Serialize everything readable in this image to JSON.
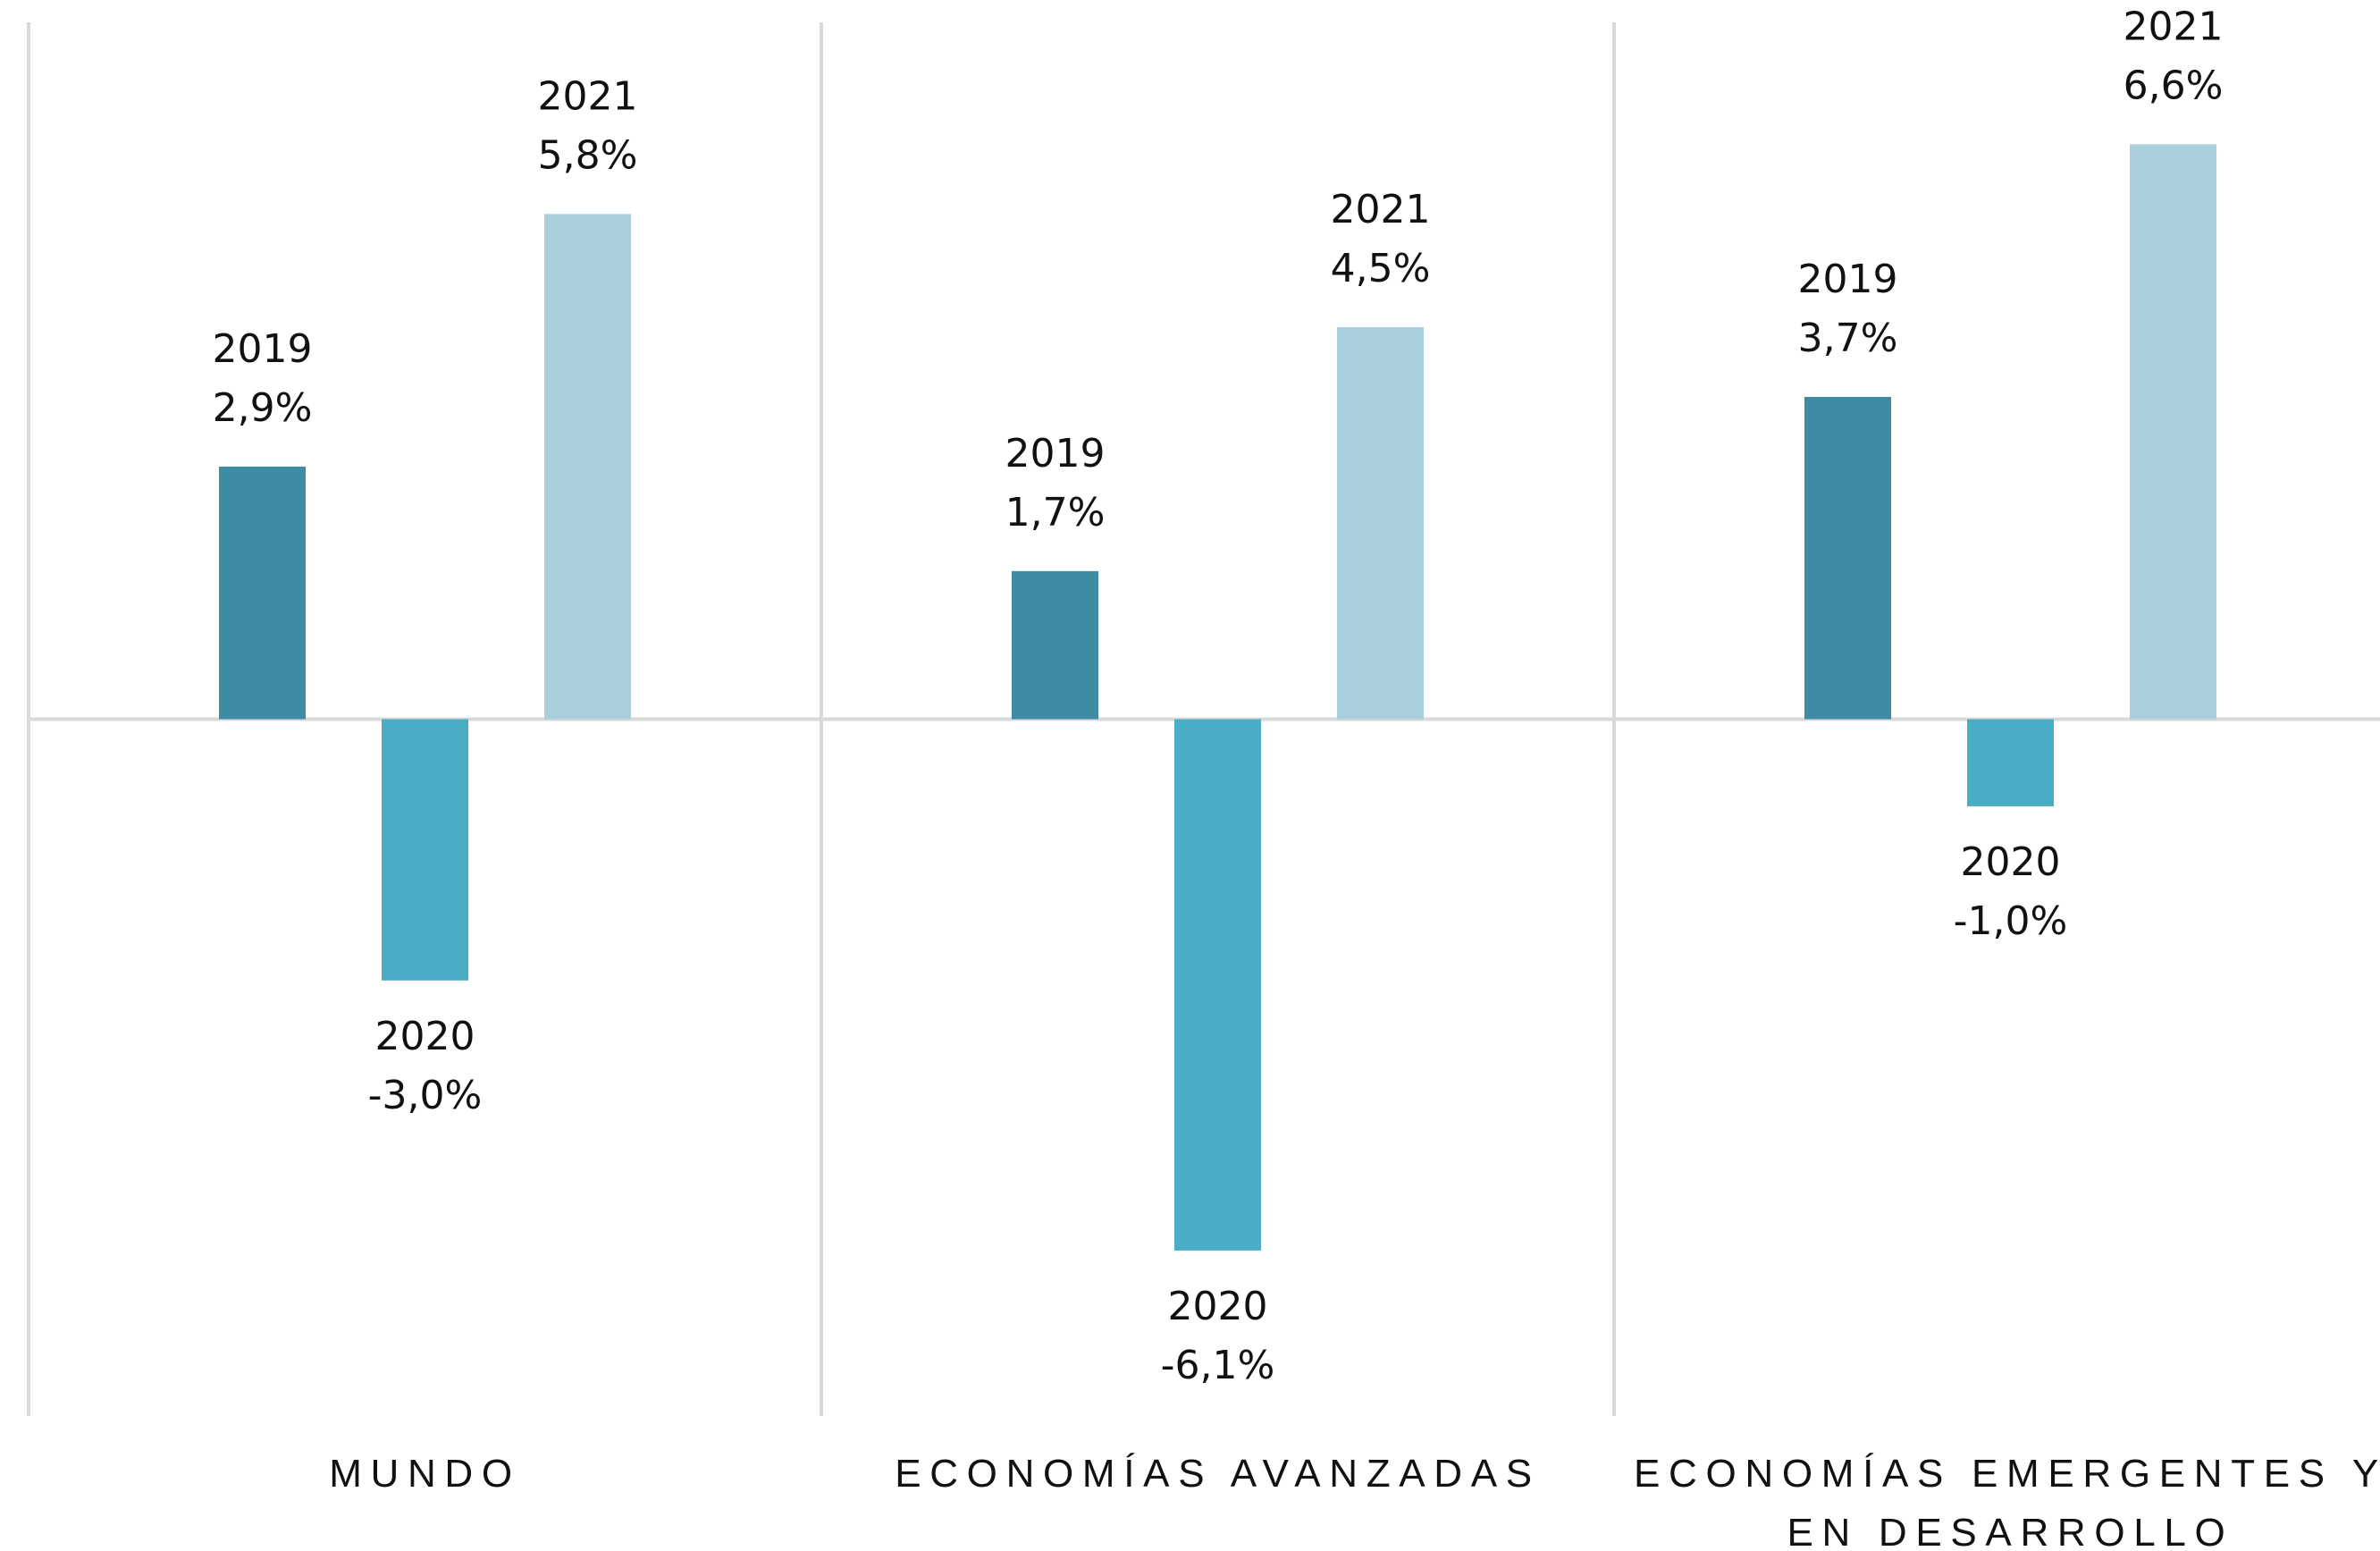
{
  "chart_data": {
    "type": "bar",
    "categories": [
      "MUNDO",
      "ECONOMÍAS AVANZADAS",
      "ECONOMÍAS EMERGENTES Y EN DESARROLLO"
    ],
    "series": [
      {
        "name": "2019",
        "color": "#3d8ca3",
        "values": [
          2.9,
          1.7,
          3.7
        ],
        "value_labels": [
          "2,9%",
          "1,7%",
          "3,7%"
        ]
      },
      {
        "name": "2020",
        "color": "#4bacc6",
        "values": [
          -3.0,
          -6.1,
          -1.0
        ],
        "value_labels": [
          "-3,0%",
          "-6,1%",
          "-1,0%"
        ]
      },
      {
        "name": "2021",
        "color": "#a9cfdc",
        "values": [
          5.8,
          4.5,
          6.6
        ],
        "value_labels": [
          "5,8%",
          "4,5%",
          "6,6%"
        ]
      }
    ],
    "ylim": [
      -8,
      8
    ]
  }
}
